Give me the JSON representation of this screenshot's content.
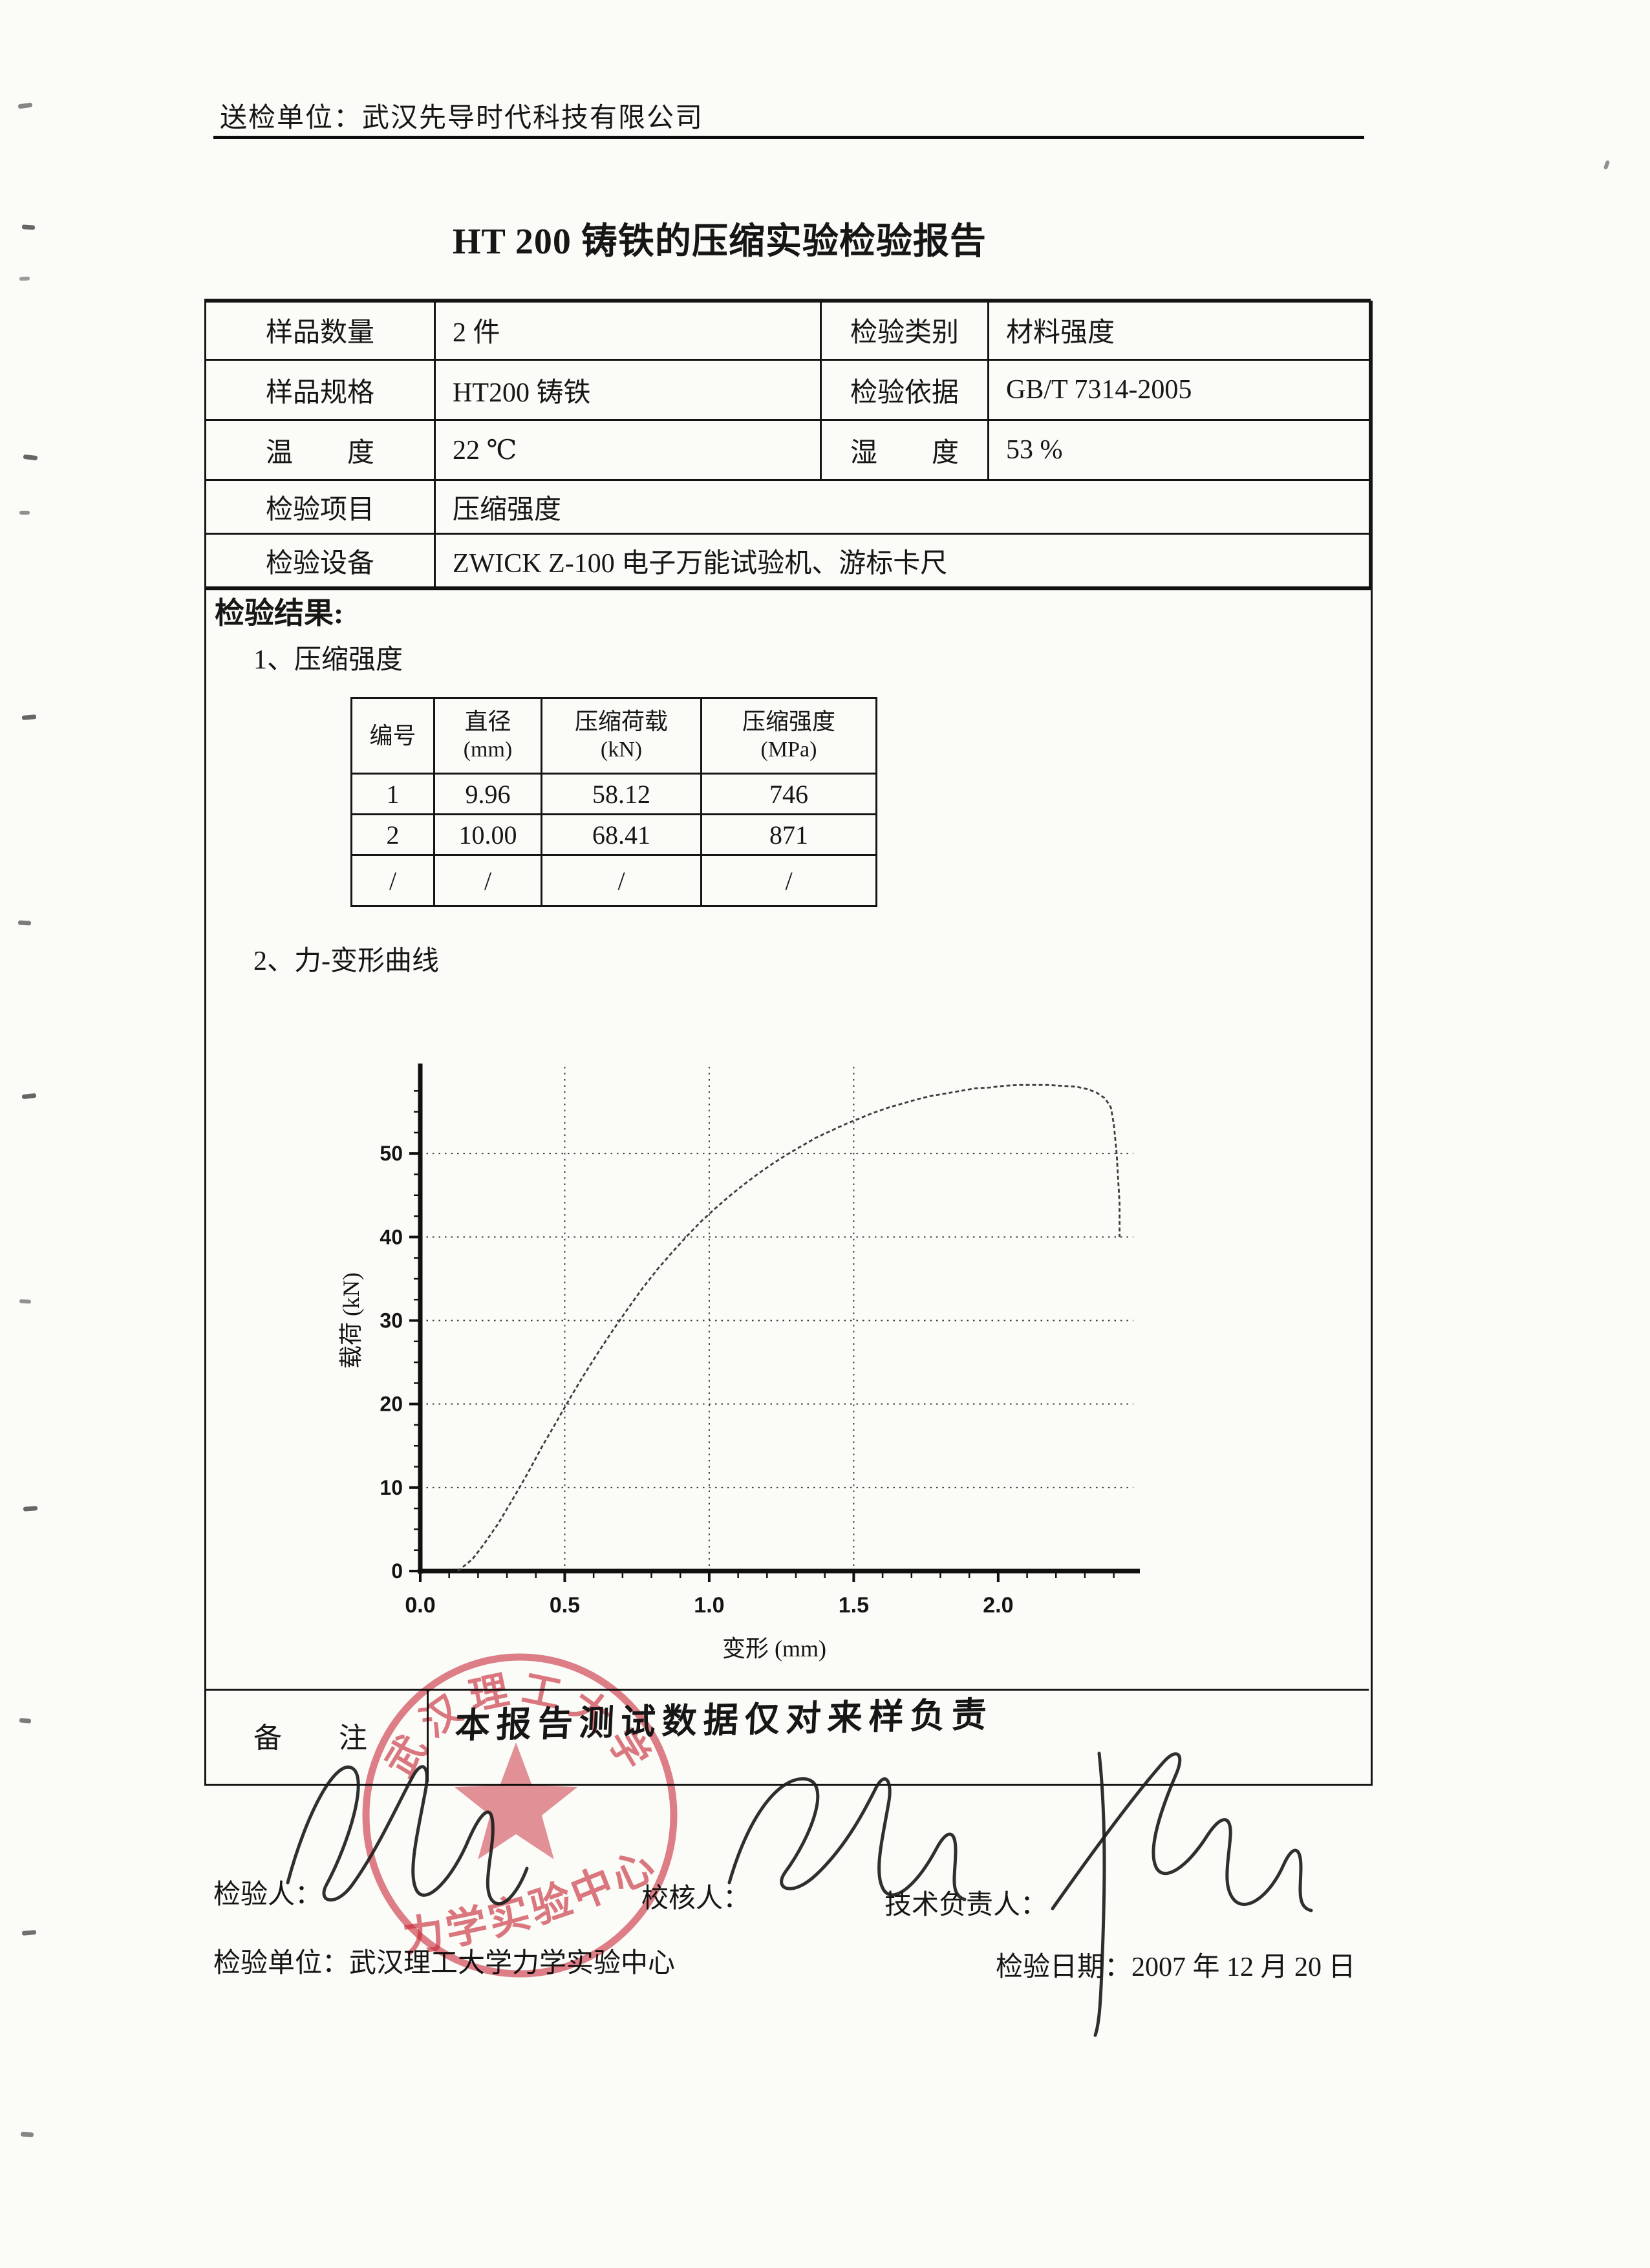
{
  "header": {
    "submitter": "送检单位：武汉先导时代科技有限公司"
  },
  "title": "HT 200 铸铁的压缩实验检验报告",
  "info": {
    "rows": [
      {
        "c": [
          "样品数量",
          "2 件",
          "检验类别",
          "材料强度"
        ]
      },
      {
        "c": [
          "样品规格",
          "HT200 铸铁",
          "检验依据",
          "GB/T 7314-2005"
        ]
      },
      {
        "c": [
          "温　　度",
          "22 ℃",
          "湿　　度",
          "53 %"
        ]
      },
      {
        "c": [
          "检验项目",
          "压缩强度"
        ]
      },
      {
        "c": [
          "检验设备",
          "ZWICK Z-100 电子万能试验机、游标卡尺"
        ]
      }
    ]
  },
  "sections": {
    "results_heading": "检验结果:",
    "item1": "1、压缩强度",
    "item2": "2、力-变形曲线"
  },
  "results": {
    "headers": [
      {
        "l1": "编号",
        "l2": ""
      },
      {
        "l1": "直径",
        "l2": "(mm)"
      },
      {
        "l1": "压缩荷载",
        "l2": "(kN)"
      },
      {
        "l1": "压缩强度",
        "l2": "(MPa)"
      }
    ],
    "rows": [
      {
        "c": [
          "1",
          "9.96",
          "58.12",
          "746"
        ]
      },
      {
        "c": [
          "2",
          "10.00",
          "68.41",
          "871"
        ]
      },
      {
        "c": [
          "/",
          "/",
          "/",
          "/"
        ]
      }
    ]
  },
  "chart_data": {
    "type": "line",
    "title": "",
    "xlabel": "变形 (mm)",
    "ylabel": "载荷 (kN)",
    "xlim": [
      0,
      2.45
    ],
    "ylim": [
      0,
      60
    ],
    "xticks": [
      "0.0",
      "0.5",
      "1.0",
      "1.5",
      "2.0"
    ],
    "yticks": [
      0,
      10,
      20,
      30,
      40,
      50
    ],
    "x_minor_step": 0.1,
    "y_minor_step": 2.5,
    "grid": {
      "h": [
        10,
        20,
        30,
        40,
        50
      ],
      "v": [
        0.5,
        1.0,
        1.5
      ],
      "style": "dotted"
    },
    "legend": "none",
    "series": [
      {
        "name": "力-变形曲线",
        "points": [
          [
            0.13,
            0
          ],
          [
            0.18,
            1.4
          ],
          [
            0.22,
            3.2
          ],
          [
            0.27,
            5.7
          ],
          [
            0.32,
            8.6
          ],
          [
            0.37,
            11.6
          ],
          [
            0.42,
            14.8
          ],
          [
            0.47,
            17.8
          ],
          [
            0.52,
            20.8
          ],
          [
            0.57,
            23.7
          ],
          [
            0.62,
            26.4
          ],
          [
            0.67,
            29.0
          ],
          [
            0.72,
            31.5
          ],
          [
            0.77,
            33.9
          ],
          [
            0.82,
            36.1
          ],
          [
            0.87,
            38.1
          ],
          [
            0.92,
            40.0
          ],
          [
            0.97,
            41.8
          ],
          [
            1.02,
            43.4
          ],
          [
            1.07,
            44.9
          ],
          [
            1.12,
            46.3
          ],
          [
            1.17,
            47.6
          ],
          [
            1.22,
            48.8
          ],
          [
            1.27,
            49.9
          ],
          [
            1.32,
            50.9
          ],
          [
            1.37,
            51.9
          ],
          [
            1.42,
            52.7
          ],
          [
            1.47,
            53.5
          ],
          [
            1.52,
            54.2
          ],
          [
            1.57,
            54.9
          ],
          [
            1.62,
            55.5
          ],
          [
            1.67,
            56.0
          ],
          [
            1.72,
            56.5
          ],
          [
            1.77,
            56.9
          ],
          [
            1.82,
            57.2
          ],
          [
            1.87,
            57.5
          ],
          [
            1.92,
            57.8
          ],
          [
            1.97,
            57.9
          ],
          [
            2.02,
            58.1
          ],
          [
            2.07,
            58.2
          ],
          [
            2.12,
            58.2
          ],
          [
            2.17,
            58.2
          ],
          [
            2.22,
            58.1
          ],
          [
            2.27,
            58.0
          ],
          [
            2.31,
            57.7
          ],
          [
            2.34,
            57.3
          ],
          [
            2.37,
            56.6
          ],
          [
            2.39,
            55.5
          ],
          [
            2.4,
            53.5
          ],
          [
            2.41,
            50.0
          ],
          [
            2.42,
            44.0
          ],
          [
            2.42,
            40.0
          ]
        ]
      }
    ]
  },
  "remark": {
    "label": "备　　注",
    "content": "本报告测试数据仅对来样负责"
  },
  "stamp": {
    "top_text": "武汉理工大学",
    "bottom_text": "力学实验中心",
    "color": "#cd2a3a"
  },
  "footer": {
    "inspector_label": "检验人：",
    "reviewer_label": "校核人：",
    "tech_lead_label": "技术负责人：",
    "org_line": "检验单位：武汉理工大学力学实验中心",
    "date_label": "检验日期：",
    "date_value": "2007 年 12 月 20 日"
  }
}
